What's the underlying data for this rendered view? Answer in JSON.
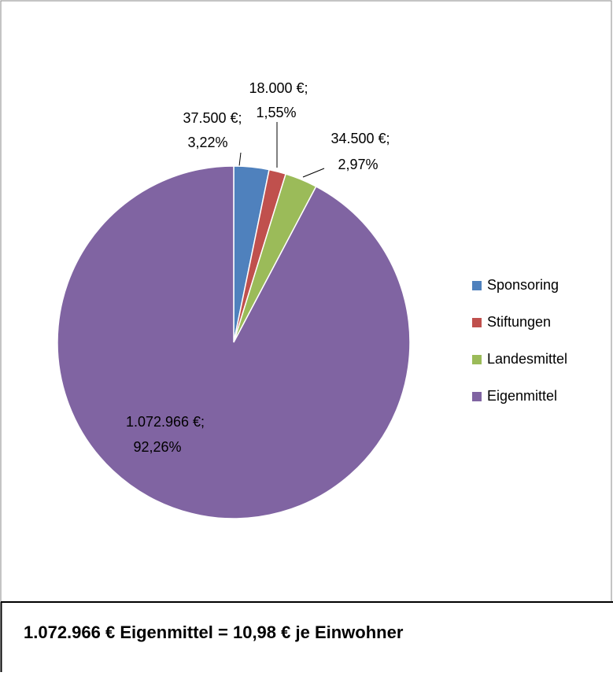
{
  "chart_data": {
    "type": "pie",
    "categories": [
      "Sponsoring",
      "Stiftungen",
      "Landesmittel",
      "Eigenmittel"
    ],
    "values": [
      37500,
      18000,
      34500,
      1072966
    ],
    "value_labels": [
      [
        "37.500 €;",
        "3,22%"
      ],
      [
        "18.000 €;",
        "1,55%"
      ],
      [
        "34.500 €;",
        "2,97%"
      ],
      [
        "1.072.966 €;",
        "92,26%"
      ]
    ],
    "colors": [
      "#4f81bd",
      "#c0504d",
      "#9bbb59",
      "#8064a2"
    ],
    "legend": "right",
    "caption": "1.072.966 € Eigenmittel = 10,98 € je Einwohner"
  }
}
